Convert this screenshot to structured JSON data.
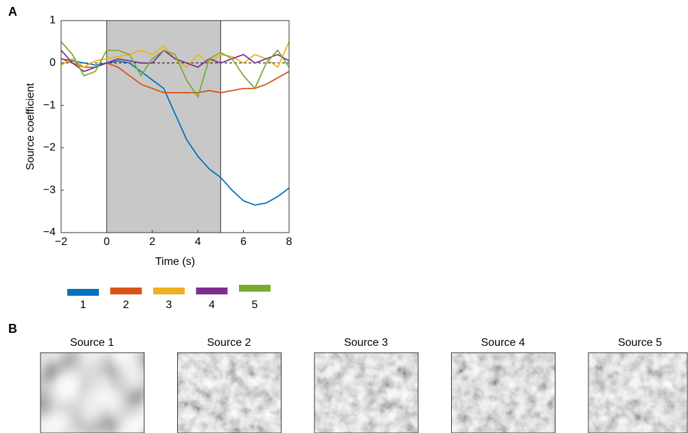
{
  "panel_labels": [
    "A",
    "B"
  ],
  "chart_data": {
    "type": "line",
    "x_label": "Time (s)",
    "y_label": "Source coefficient",
    "x": [
      -2,
      -1.5,
      -1,
      -0.5,
      0,
      0.5,
      1,
      1.5,
      2,
      2.5,
      3,
      3.5,
      4,
      4.5,
      5,
      5.5,
      6,
      6.5,
      7,
      7.5,
      8
    ],
    "series": [
      {
        "name": "1",
        "color": "#0072bd",
        "values": [
          0.1,
          0.05,
          0,
          -0.05,
          0,
          0.05,
          0,
          -0.2,
          -0.4,
          -0.6,
          -1.2,
          -1.8,
          -2.2,
          -2.5,
          -2.7,
          -3.0,
          -3.25,
          -3.35,
          -3.3,
          -3.15,
          -2.95
        ]
      },
      {
        "name": "2",
        "color": "#d95319",
        "values": [
          0.1,
          0,
          -0.1,
          -0.1,
          0,
          -0.1,
          -0.3,
          -0.5,
          -0.6,
          -0.7,
          -0.7,
          -0.7,
          -0.7,
          -0.65,
          -0.7,
          -0.65,
          -0.6,
          -0.6,
          -0.5,
          -0.35,
          -0.2
        ]
      },
      {
        "name": "3",
        "color": "#edb120",
        "values": [
          -0.05,
          0.1,
          -0.1,
          0.05,
          0.1,
          0.15,
          0.2,
          0.3,
          0.2,
          0.4,
          0.1,
          -0.1,
          0.2,
          0,
          0.2,
          0.15,
          0,
          0.2,
          0.1,
          -0.1,
          0.5
        ]
      },
      {
        "name": "4",
        "color": "#7e2f8e",
        "values": [
          0.3,
          0,
          -0.2,
          -0.1,
          0,
          0.1,
          0.05,
          0,
          0,
          0.3,
          0.1,
          0,
          -0.1,
          0.1,
          0,
          0.1,
          0.2,
          0,
          0.1,
          0.2,
          0.05
        ]
      },
      {
        "name": "5",
        "color": "#77ac30",
        "values": [
          0.5,
          0.2,
          -0.3,
          -0.2,
          0.3,
          0.3,
          0.2,
          -0.3,
          0.1,
          0.3,
          0.2,
          -0.4,
          -0.8,
          0.1,
          0.25,
          0.1,
          -0.3,
          -0.6,
          0,
          0.3,
          -0.1
        ]
      }
    ],
    "xlim": [
      -2,
      8
    ],
    "xticks": [
      {
        "value": -2,
        "label": "−2"
      },
      0,
      2,
      4,
      6,
      8
    ],
    "ylim": [
      -4,
      1
    ],
    "yticks": [
      {
        "value": -4,
        "label": "−4"
      },
      {
        "value": -3,
        "label": "−3"
      },
      {
        "value": -2,
        "label": "−2"
      },
      {
        "value": -1,
        "label": "−1"
      },
      0,
      1
    ],
    "highlight_x": [
      0,
      5
    ],
    "highlight_color": "#c8c8c8",
    "reference_y": 0,
    "grid": false
  },
  "sources": {
    "titles": [
      "Source 1",
      "Source 2",
      "Source 3",
      "Source 4",
      "Source 5"
    ]
  }
}
